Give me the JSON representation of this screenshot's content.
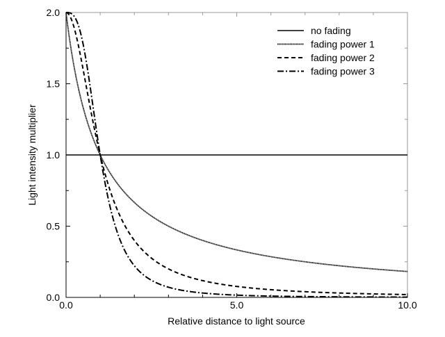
{
  "chart_data": {
    "type": "line",
    "title": "",
    "xlabel": "Relative distance to light source",
    "ylabel": "Light intensity multiplier",
    "xlim": [
      0,
      10
    ],
    "ylim": [
      0,
      2
    ],
    "xticks": [
      "0.0",
      "5.0",
      "10.0"
    ],
    "xtick_values": [
      0,
      5,
      10
    ],
    "yticks": [
      "0.0",
      "0.5",
      "1.0",
      "1.5",
      "2.0"
    ],
    "ytick_values": [
      0,
      0.5,
      1,
      1.5,
      2
    ],
    "grid": false,
    "legend_position": "top-right",
    "x": [
      0,
      0.25,
      0.5,
      0.75,
      1,
      1.5,
      2,
      3,
      4,
      5,
      6,
      7,
      8,
      9,
      10
    ],
    "series": [
      {
        "name": "no fading",
        "style": "solid",
        "values": [
          1,
          1,
          1,
          1,
          1,
          1,
          1,
          1,
          1,
          1,
          1,
          1,
          1,
          1,
          1
        ]
      },
      {
        "name": "fading power 1",
        "style": "dotted",
        "values": [
          2,
          1.6,
          1.333,
          1.143,
          1,
          0.8,
          0.667,
          0.5,
          0.4,
          0.333,
          0.286,
          0.25,
          0.222,
          0.2,
          0.182
        ]
      },
      {
        "name": "fading power 2",
        "style": "dashed",
        "values": [
          2,
          1.882,
          1.6,
          1.28,
          1,
          0.615,
          0.4,
          0.2,
          0.118,
          0.077,
          0.054,
          0.04,
          0.031,
          0.024,
          0.02
        ]
      },
      {
        "name": "fading power 3",
        "style": "dash-dot",
        "values": [
          2,
          1.969,
          1.778,
          1.406,
          1,
          0.457,
          0.222,
          0.071,
          0.031,
          0.016,
          0.009,
          0.006,
          0.004,
          0.003,
          0.002
        ]
      }
    ],
    "color": "#000000"
  }
}
